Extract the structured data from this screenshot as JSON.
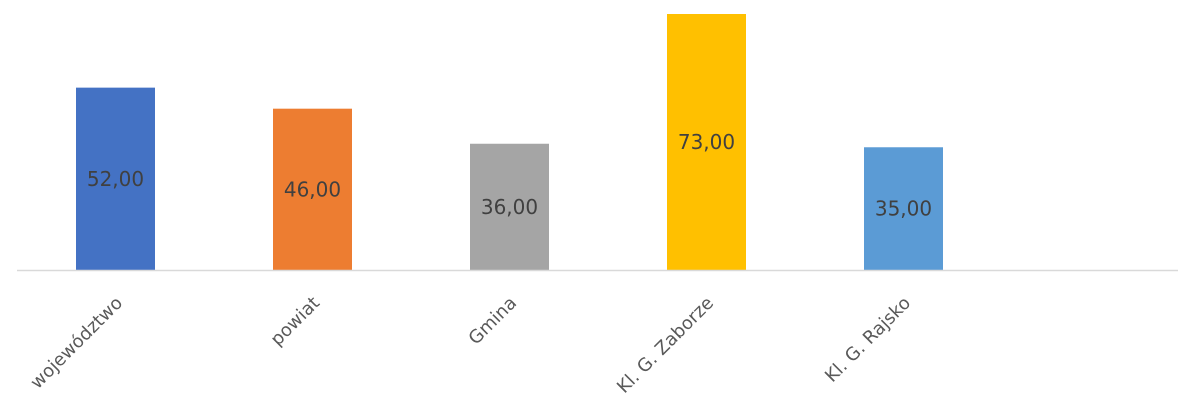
{
  "chart_data": {
    "type": "bar",
    "title": "",
    "xlabel": "",
    "ylabel": "",
    "categories": [
      "województwo",
      "powiat",
      "Gmina",
      "Kl. G. Zaborze",
      "Kl. G. Rajsko"
    ],
    "values": [
      52,
      46,
      36,
      73,
      35
    ],
    "value_labels": [
      "52,00",
      "46,00",
      "36,00",
      "73,00",
      "35,00"
    ],
    "colors": [
      "#4472C4",
      "#ED7D31",
      "#A5A5A5",
      "#FFC000",
      "#5B9BD5"
    ],
    "ylim": [
      0,
      73
    ],
    "grid": false,
    "legend": "none",
    "axis_color": "#D9D9D9"
  }
}
